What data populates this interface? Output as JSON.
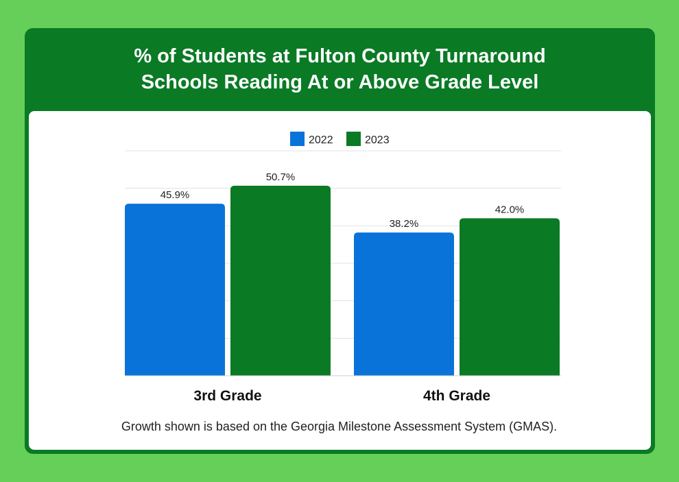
{
  "chart_data": {
    "type": "bar",
    "title": "% of Students at Fulton County Turnaround Schools Reading At or Above Grade Level",
    "categories": [
      "3rd Grade",
      "4th Grade"
    ],
    "series": [
      {
        "name": "2022",
        "values": [
          45.9,
          38.2
        ],
        "labels": [
          "45.9%",
          "38.2%"
        ],
        "color": "#0a73d9"
      },
      {
        "name": "2023",
        "values": [
          50.7,
          42.0
        ],
        "labels": [
          "50.7%",
          "42.0%"
        ],
        "color": "#0a7a25"
      }
    ],
    "xlabel": "",
    "ylabel": "",
    "ylim": [
      0,
      60
    ],
    "grid": true,
    "legend_position": "top-center"
  },
  "footnote": "Growth shown is based on the Georgia Milestone Assessment System (GMAS).",
  "colors": {
    "background": "#65cf59",
    "header": "#0a7a25",
    "panel": "#ffffff"
  }
}
